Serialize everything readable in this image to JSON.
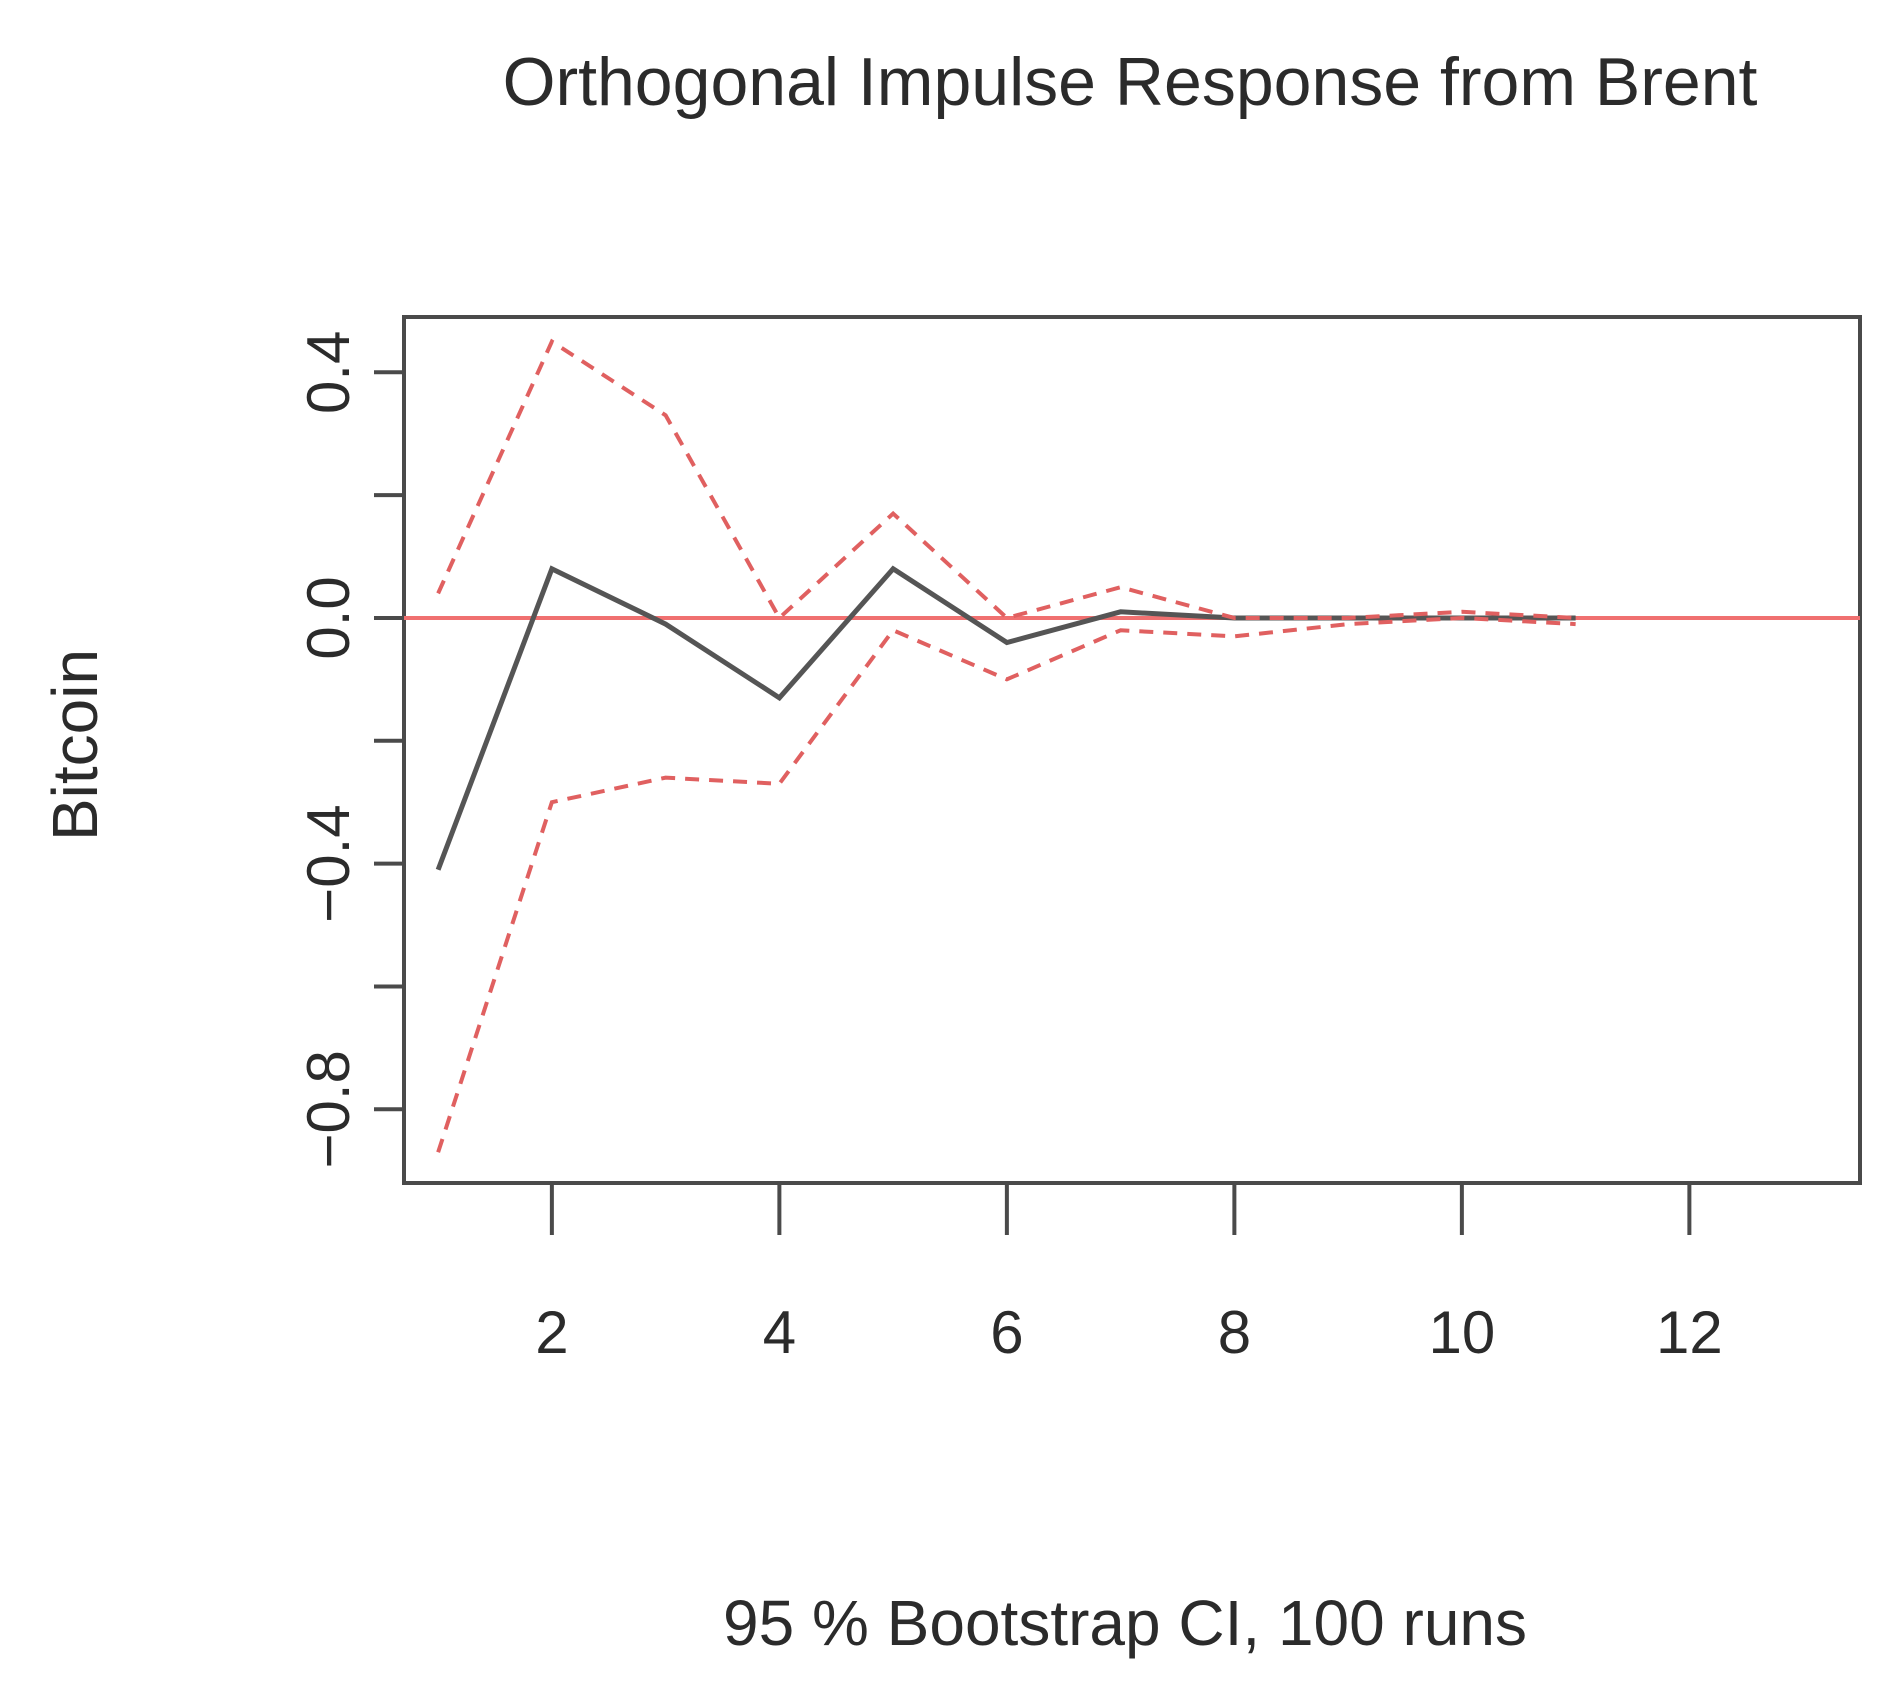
{
  "chart_data": {
    "type": "line",
    "title": "Orthogonal Impulse Response from Brent",
    "ylabel": "Bitcoin",
    "xlabel": "95 % Bootstrap CI,  100 runs",
    "x": [
      1,
      2,
      3,
      4,
      5,
      6,
      7,
      8,
      9,
      10,
      11
    ],
    "xlim": [
      0.7,
      13.5
    ],
    "ylim": [
      -0.92,
      0.49
    ],
    "x_ticks": [
      2,
      4,
      6,
      8,
      10,
      12
    ],
    "y_ticks": [
      -0.8,
      -0.6,
      -0.4,
      -0.2,
      0.0,
      0.2,
      0.4
    ],
    "y_tick_labels": [
      "−0.8",
      "",
      "−0.4",
      "",
      "0.0",
      "",
      "0.4"
    ],
    "series": [
      {
        "role": "response",
        "values": [
          -0.41,
          0.08,
          -0.01,
          -0.13,
          0.08,
          -0.04,
          0.01,
          0.0,
          0.0,
          0.0,
          0.0
        ],
        "color": "#555555",
        "style": "solid"
      },
      {
        "role": "upper-ci",
        "values": [
          0.04,
          0.45,
          0.33,
          0.0,
          0.17,
          0.0,
          0.05,
          0.0,
          0.0,
          0.01,
          0.0
        ],
        "color": "#e06060",
        "style": "dashed"
      },
      {
        "role": "lower-ci",
        "values": [
          -0.87,
          -0.3,
          -0.26,
          -0.27,
          -0.02,
          -0.1,
          -0.02,
          -0.03,
          -0.01,
          0.0,
          -0.01
        ],
        "color": "#e06060",
        "style": "dashed"
      }
    ],
    "zero_line": {
      "y": 0.0,
      "color": "#f07070"
    },
    "grid": false,
    "legend": "none"
  }
}
